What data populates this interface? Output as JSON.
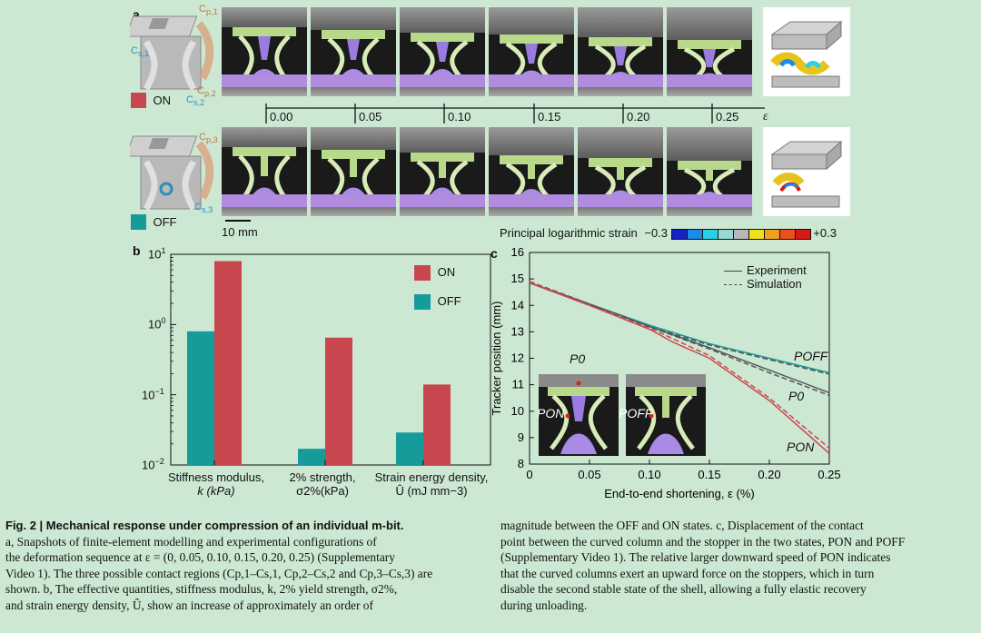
{
  "panel_a": {
    "label": "a",
    "contact_labels_on": [
      "C",
      "p,1",
      "C",
      "s,1",
      "C",
      "p,2",
      "C",
      "s,2"
    ],
    "contact_labels_off": [
      "C",
      "p,3",
      "C",
      "s,3"
    ],
    "on_label": "ON",
    "off_label": "OFF",
    "strain_ticks": [
      "0.00",
      "0.05",
      "0.10",
      "0.15",
      "0.20",
      "0.25"
    ],
    "strain_symbol": "ε",
    "scale_bar_label": "10 mm",
    "colorbar_title": "Principal logarithmic strain",
    "colorbar_min": "−0.3",
    "colorbar_max": "+0.3",
    "colorbar_colors": [
      "#1424c8",
      "#1c8ae6",
      "#28d0e8",
      "#9ad8d8",
      "#b8b8b8",
      "#f0e020",
      "#f0a020",
      "#e85020",
      "#d81818"
    ],
    "on_color": "#c8474e",
    "off_color": "#169a9a"
  },
  "panel_b": {
    "label": "b",
    "ytick_labels": [
      {
        "base": "10",
        "exp": "1"
      },
      {
        "base": "10",
        "exp": "0"
      },
      {
        "base": "10",
        "exp": "−1"
      },
      {
        "base": "10",
        "exp": "−2"
      }
    ],
    "legend_on": "ON",
    "legend_off": "OFF",
    "cat1_line1": "Stiffness modulus,",
    "cat1_line2": "k (kPa)",
    "cat2_line1": "2% strength,",
    "cat2_line2": "σ2%(kPa)",
    "cat3_line1": "Strain energy density,",
    "cat3_line2": "Û (mJ mm−3)"
  },
  "panel_c": {
    "label": "c",
    "legend_experiment": "Experiment",
    "legend_simulation": "Simulation",
    "label_poff": "POFF",
    "label_p0": "P0",
    "label_pon": "PON",
    "inset_p0": "P0",
    "inset_pon": "PON",
    "inset_poff": "POFF"
  },
  "chart_data": [
    {
      "type": "bar",
      "title": "",
      "yscale": "log",
      "ylim": [
        0.01,
        10
      ],
      "categories": [
        "Stiffness modulus, k (kPa)",
        "2% strength, σ2% (kPa)",
        "Strain energy density, Û (mJ mm−3)"
      ],
      "series": [
        {
          "name": "OFF",
          "color": "#169a9a",
          "values": [
            0.8,
            0.017,
            0.029
          ]
        },
        {
          "name": "ON",
          "color": "#c8474e",
          "values": [
            8.0,
            0.65,
            0.14
          ]
        }
      ],
      "legend": "top-right"
    },
    {
      "type": "line",
      "xlabel": "End-to-end shortening, ε (%)",
      "ylabel": "Tracker position (mm)",
      "xlim": [
        0,
        0.25
      ],
      "ylim": [
        8,
        16
      ],
      "xticks": [
        "0",
        "0.05",
        "0.10",
        "0.15",
        "0.20",
        "0.25"
      ],
      "yticks": [
        "8",
        "9",
        "10",
        "11",
        "12",
        "13",
        "14",
        "15",
        "16"
      ],
      "series": [
        {
          "name": "P_OFF experiment",
          "color": "#169a9a",
          "style": "solid",
          "x": [
            0,
            0.05,
            0.1,
            0.15,
            0.2,
            0.25
          ],
          "y": [
            14.85,
            14.05,
            13.25,
            12.55,
            12.0,
            11.45
          ]
        },
        {
          "name": "P_OFF simulation",
          "color": "#555555",
          "style": "dashed",
          "x": [
            0,
            0.05,
            0.1,
            0.15,
            0.2,
            0.25
          ],
          "y": [
            14.9,
            14.05,
            13.2,
            12.5,
            11.95,
            11.4
          ]
        },
        {
          "name": "P_0 experiment",
          "color": "#555555",
          "style": "solid",
          "x": [
            0,
            0.05,
            0.1,
            0.15,
            0.2,
            0.25
          ],
          "y": [
            14.85,
            14.05,
            13.2,
            12.4,
            11.55,
            10.7
          ]
        },
        {
          "name": "P_0 simulation",
          "color": "#555555",
          "style": "dashed",
          "x": [
            0,
            0.05,
            0.1,
            0.15,
            0.2,
            0.25
          ],
          "y": [
            14.9,
            14.05,
            13.2,
            12.35,
            11.45,
            10.6
          ]
        },
        {
          "name": "P_ON experiment",
          "color": "#c8474e",
          "style": "solid",
          "x": [
            0,
            0.05,
            0.1,
            0.12,
            0.15,
            0.2,
            0.25
          ],
          "y": [
            14.85,
            14.0,
            13.1,
            12.6,
            12.0,
            10.4,
            8.4
          ]
        },
        {
          "name": "P_ON simulation",
          "color": "#c8474e",
          "style": "dashed",
          "x": [
            0,
            0.05,
            0.1,
            0.15,
            0.2,
            0.25
          ],
          "y": [
            14.9,
            14.0,
            13.15,
            12.1,
            10.5,
            8.6
          ]
        }
      ],
      "legend": "top-right"
    }
  ],
  "caption": {
    "fig_label": "Fig. 2 | Mechanical response under compression of an individual m-bit.",
    "left": [
      "a, Snapshots of finite-element modelling and experimental configurations of",
      "the deformation sequence at ε = (0, 0.05, 0.10, 0.15, 0.20, 0.25) (Supplementary",
      "Video 1). The three possible contact regions (Cp,1–Cs,1, Cp,2–Cs,2 and Cp,3–Cs,3) are",
      "shown. b, The effective quantities, stiffness modulus, k, 2% yield strength, σ2%,",
      "and strain energy density, Û, show an increase of approximately an order of"
    ],
    "right": [
      "magnitude between the OFF and ON states. c, Displacement of the contact",
      "point between the curved column and the stopper in the two states, PON and POFF",
      "(Supplementary Video 1). The relative larger downward speed of PON indicates",
      "that the curved columns exert an upward force on the stoppers, which in turn",
      "disable the second stable state of the shell, allowing a fully elastic recovery",
      "during unloading."
    ]
  }
}
